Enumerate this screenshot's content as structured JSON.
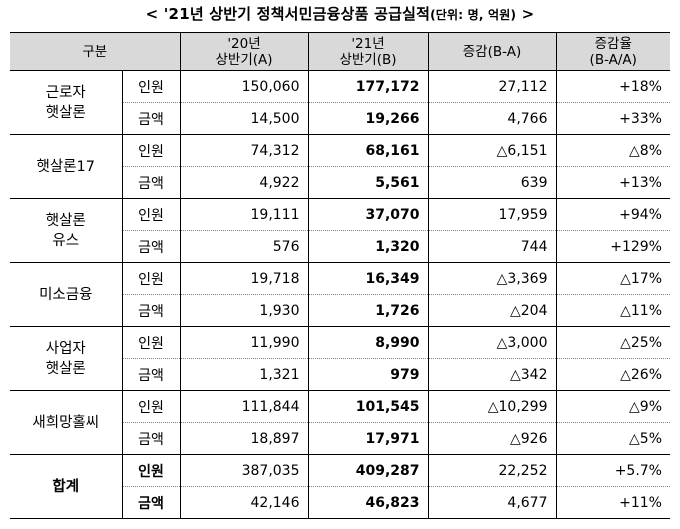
{
  "title": {
    "main": "< '21년 상반기 정책서민금융상품 공급실적",
    "unit": "(단위: 명, 억원)",
    "end": ">"
  },
  "header": {
    "category": "구분",
    "col_a": [
      "'20년",
      "상반기(A)"
    ],
    "col_b": [
      "'21년",
      "상반기(B)"
    ],
    "col_diff": "증감(B-A)",
    "col_rate": [
      "증감율",
      "(B-A/A)"
    ]
  },
  "groups": [
    {
      "name": [
        "근로자",
        "햇살론"
      ],
      "rows": [
        {
          "item": "인원",
          "a": "150,060",
          "b": "177,172",
          "diff": "27,112",
          "rate": "+18%"
        },
        {
          "item": "금액",
          "a": "14,500",
          "b": "19,266",
          "diff": "4,766",
          "rate": "+33%"
        }
      ]
    },
    {
      "name": [
        "햇살론17"
      ],
      "rows": [
        {
          "item": "인원",
          "a": "74,312",
          "b": "68,161",
          "diff": "△6,151",
          "rate": "△8%"
        },
        {
          "item": "금액",
          "a": "4,922",
          "b": "5,561",
          "diff": "639",
          "rate": "+13%"
        }
      ]
    },
    {
      "name": [
        "햇살론",
        "유스"
      ],
      "rows": [
        {
          "item": "인원",
          "a": "19,111",
          "b": "37,070",
          "diff": "17,959",
          "rate": "+94%"
        },
        {
          "item": "금액",
          "a": "576",
          "b": "1,320",
          "diff": "744",
          "rate": "+129%"
        }
      ]
    },
    {
      "name": [
        "미소금융"
      ],
      "rows": [
        {
          "item": "인원",
          "a": "19,718",
          "b": "16,349",
          "diff": "△3,369",
          "rate": "△17%"
        },
        {
          "item": "금액",
          "a": "1,930",
          "b": "1,726",
          "diff": "△204",
          "rate": "△11%"
        }
      ]
    },
    {
      "name": [
        "사업자",
        "햇살론"
      ],
      "rows": [
        {
          "item": "인원",
          "a": "11,990",
          "b": "8,990",
          "diff": "△3,000",
          "rate": "△25%"
        },
        {
          "item": "금액",
          "a": "1,321",
          "b": "979",
          "diff": "△342",
          "rate": "△26%"
        }
      ]
    },
    {
      "name": [
        "새희망홀씨"
      ],
      "rows": [
        {
          "item": "인원",
          "a": "111,844",
          "b": "101,545",
          "diff": "△10,299",
          "rate": "△9%"
        },
        {
          "item": "금액",
          "a": "18,897",
          "b": "17,971",
          "diff": "△926",
          "rate": "△5%"
        }
      ]
    }
  ],
  "total": {
    "name": "합계",
    "rows": [
      {
        "item": "인원",
        "a": "387,035",
        "b": "409,287",
        "diff": "22,252",
        "rate": "+5.7%"
      },
      {
        "item": "금액",
        "a": "42,146",
        "b": "46,823",
        "diff": "4,677",
        "rate": "+11%"
      }
    ]
  }
}
